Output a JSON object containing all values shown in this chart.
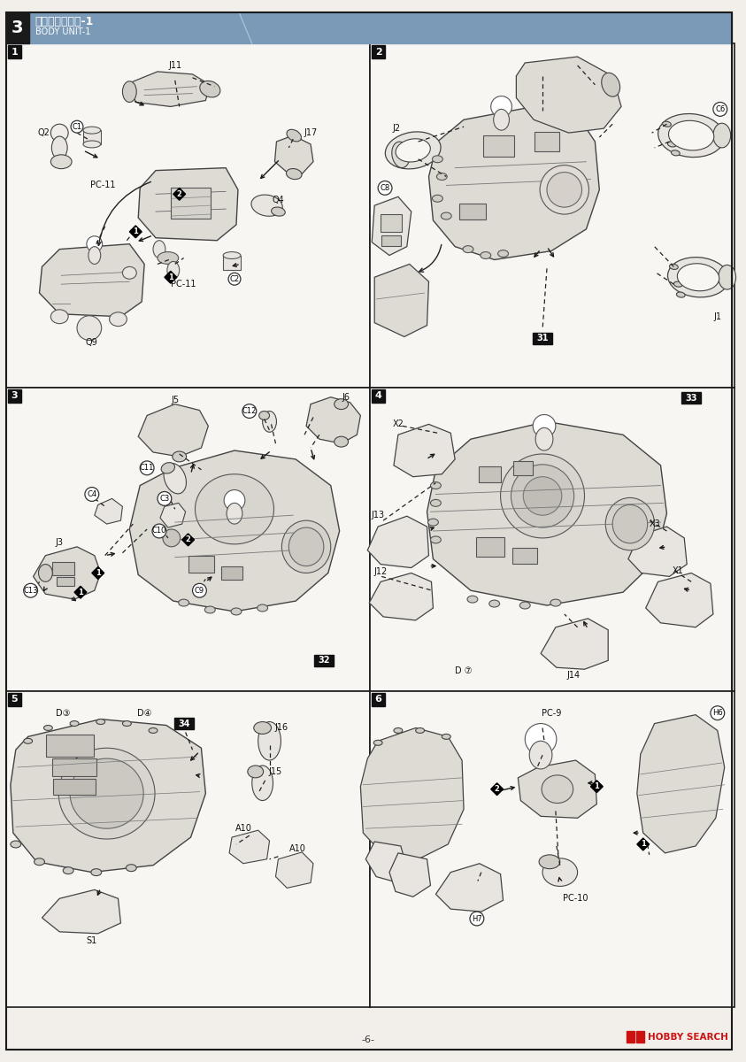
{
  "page_bg": "#f2efeb",
  "outer_bg": "#e8e4df",
  "border_color": "#1a1a1a",
  "header_bg": "#7a9ab8",
  "header_dark": "#1a1a1a",
  "header_title_jp": "胴体の組み立て-1",
  "header_title_en": "BODY UNIT-1",
  "header_number": "3",
  "page_number": "-6-",
  "panel_bg": "#f8f6f2",
  "dashed_color": "#222222",
  "line_color": "#333333",
  "part_fill": "#e8e5e0",
  "part_fill2": "#dedad4",
  "part_fill3": "#d0ccc6",
  "part_edge": "#444444",
  "label_dark_bg": "#111111",
  "hobby_red": "#cc1111"
}
